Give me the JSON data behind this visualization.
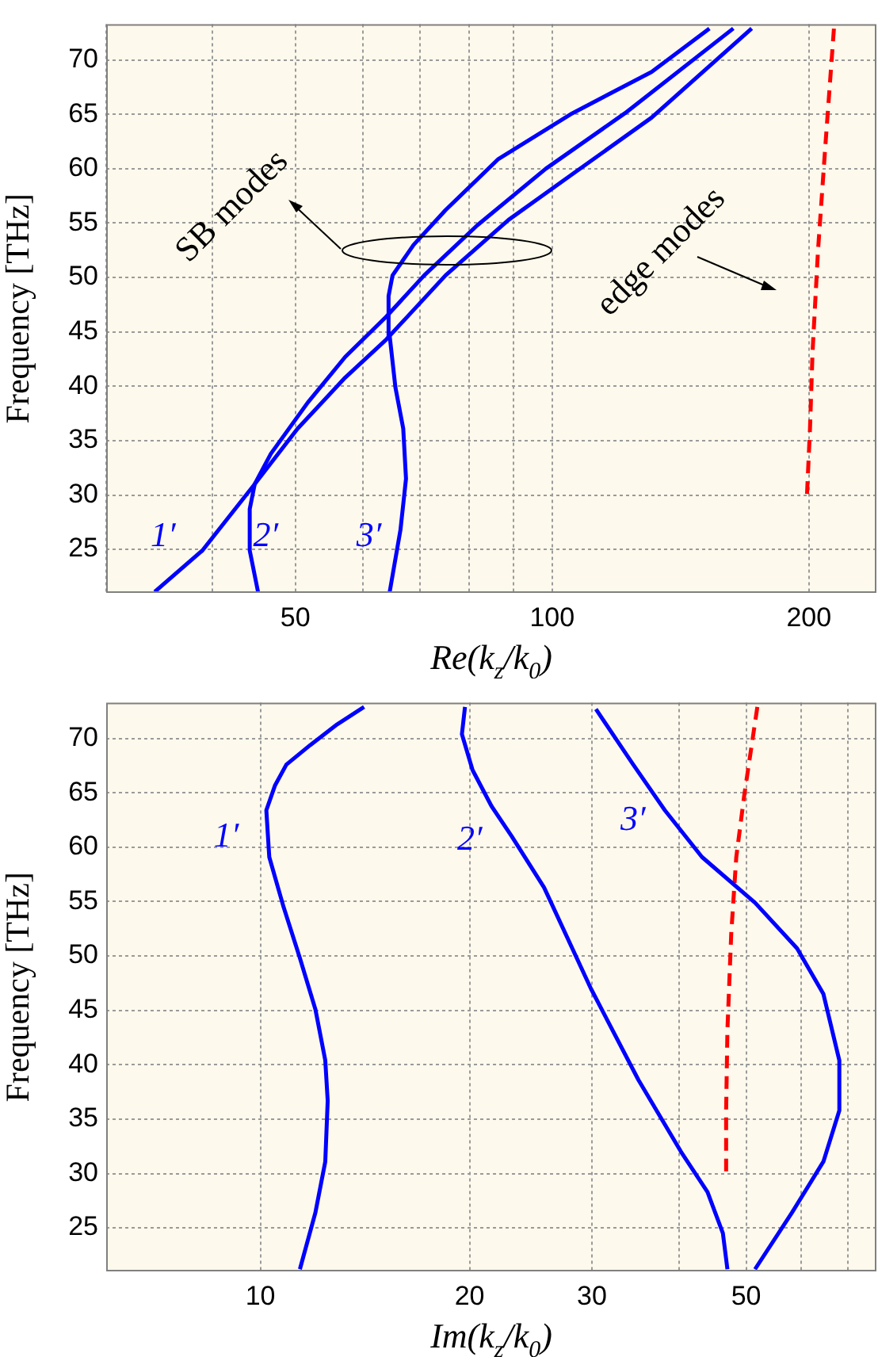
{
  "chart_data": [
    {
      "type": "line",
      "xlabel": "Re(k$_{z}$/k$_{0}$)",
      "ylabel": "Frequency [THz]",
      "log": "x",
      "xlim": [
        30,
        240
      ],
      "xticks": [
        {
          "value": 30,
          "label": null
        },
        {
          "value": 40,
          "label": null
        },
        50,
        {
          "value": 60,
          "label": null
        },
        {
          "value": 70,
          "label": null
        },
        {
          "value": 80,
          "label": null
        },
        {
          "value": 90,
          "label": null
        },
        100,
        200
      ],
      "ylim": [
        21,
        73.3
      ],
      "yticks": [
        25,
        30,
        35,
        40,
        45,
        50,
        55,
        60,
        65,
        70
      ],
      "grid": true,
      "series": [
        {
          "color": "#0000ff",
          "x": [
            34.2,
            38.9,
            44.8,
            50.3,
            57.2,
            63.9,
            75.0,
            88.9,
            105.6,
            130.8,
            171.4
          ],
          "values": [
            21.1,
            24.9,
            31.0,
            36.1,
            40.8,
            44.3,
            50.2,
            55.3,
            59.5,
            64.7,
            72.9
          ]
        },
        {
          "color": "#0000ff",
          "x": [
            45.2,
            44.2,
            44.2,
            44.8,
            46.8,
            51.7,
            57.2,
            63.9,
            70.8,
            81.7,
            98.3,
            121.7,
            163.1
          ],
          "values": [
            21.1,
            24.9,
            28.7,
            31.0,
            33.8,
            38.5,
            42.7,
            46.4,
            50.2,
            54.8,
            60.0,
            65.1,
            72.9
          ]
        },
        {
          "color": "#0000ff",
          "x": [
            64.5,
            66.4,
            67.4,
            66.9,
            65.5,
            64.5,
            64.3,
            65.0,
            68.8,
            75.0,
            86.5,
            105.6,
            130.8,
            152.9
          ],
          "values": [
            21.1,
            26.8,
            31.5,
            36.1,
            39.9,
            44.6,
            48.3,
            50.2,
            53.0,
            56.2,
            60.9,
            65.1,
            68.9,
            72.9
          ]
        },
        {
          "color": "#ff0000",
          "line_style": "dashed",
          "x": [
            199,
            200.6,
            202,
            205,
            209,
            214
          ],
          "values": [
            30.1,
            36.1,
            43.2,
            52.5,
            61.9,
            72.9
          ]
        }
      ],
      "annotations": [
        "1′",
        "2′",
        "3′",
        "SB modes",
        "edge modes"
      ]
    },
    {
      "type": "line",
      "xlabel": "Im(k$_{z}$/k$_{0}$)",
      "ylabel": "Frequency [THz]",
      "log": "x",
      "xlim": [
        6,
        77
      ],
      "xticks": [
        10,
        20,
        30,
        {
          "value": 40,
          "label": null
        },
        50,
        {
          "value": 60,
          "label": null
        },
        {
          "value": 70,
          "label": null
        }
      ],
      "ylim": [
        21,
        73.3
      ],
      "yticks": [
        25,
        30,
        35,
        40,
        45,
        50,
        55,
        60,
        65,
        70
      ],
      "grid": true,
      "series": [
        {
          "color": "#0000ff",
          "x": [
            11.4,
            12.0,
            12.4,
            12.5,
            12.4,
            12.0,
            11.4,
            10.8,
            10.3,
            10.2,
            10.5,
            10.9,
            11.8,
            12.9,
            14.1
          ],
          "values": [
            21.2,
            26.4,
            31.1,
            36.7,
            40.4,
            45.1,
            49.8,
            54.5,
            59.1,
            63.4,
            65.7,
            67.6,
            69.4,
            71.3,
            72.9
          ]
        },
        {
          "color": "#0000ff",
          "x": [
            47.0,
            46.3,
            44.0,
            40.3,
            35.0,
            29.9,
            25.6,
            23.0,
            21.5,
            20.2,
            19.5,
            19.7
          ],
          "values": [
            21.2,
            24.5,
            28.3,
            32.0,
            38.6,
            47.0,
            56.3,
            61.0,
            63.8,
            67.1,
            70.4,
            72.9
          ]
        },
        {
          "color": "#0000ff",
          "x": [
            51.5,
            58.2,
            64.6,
            68.1,
            68.1,
            64.6,
            59.2,
            51.5,
            43.2,
            38.2,
            34.4,
            30.4
          ],
          "values": [
            21.2,
            26.4,
            31.1,
            35.8,
            40.4,
            46.5,
            50.7,
            54.9,
            59.1,
            63.4,
            67.6,
            72.7
          ]
        },
        {
          "color": "#ff0000",
          "line_style": "dashed",
          "x": [
            46.8,
            46.8,
            47.0,
            47.6,
            48.4,
            49.7,
            51.9
          ],
          "values": [
            30.2,
            35.8,
            43.2,
            52.1,
            59.1,
            64.8,
            72.9
          ]
        }
      ],
      "annotations": [
        "1′",
        "2′",
        "3′"
      ]
    }
  ]
}
